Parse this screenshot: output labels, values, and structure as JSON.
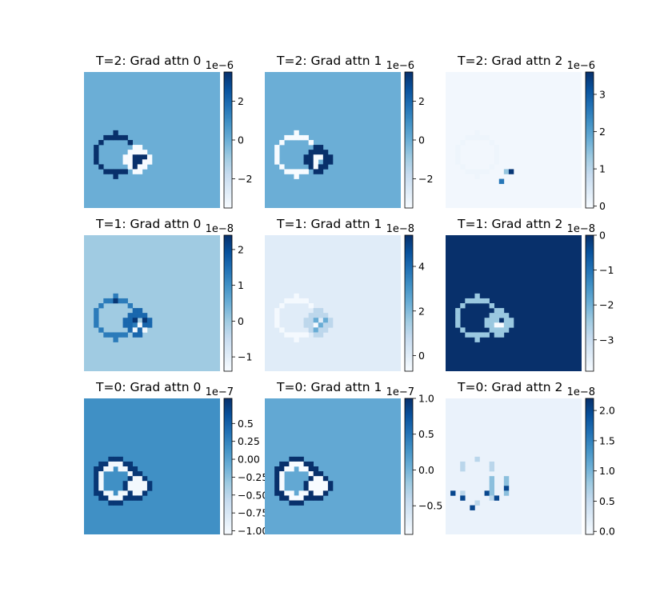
{
  "figure": {
    "background": "#ffffff"
  },
  "colormap": {
    "name": "Blues",
    "low": "#f7fbff",
    "high": "#08306b"
  },
  "chart_data": [
    {
      "type": "heatmap",
      "title": "T=2: Grad attn 0",
      "exponent_label": "1e−6",
      "vmin": -3.5,
      "vmax": 3.5,
      "background_value": 0.0,
      "ticks": [
        {
          "v": 2,
          "t": "2"
        },
        {
          "v": 0,
          "t": "0"
        },
        {
          "v": -2,
          "t": "−2"
        }
      ],
      "shapes": [
        {
          "kind": "ring",
          "cx": 6.5,
          "cy": 17.0,
          "r": 4.0,
          "value": 3.5
        },
        {
          "kind": "ring",
          "cx": 11.0,
          "cy": 18.0,
          "r": 2.0,
          "value": -3.5
        },
        {
          "kind": "pixels",
          "value": 3.5,
          "cells": [
            [
              10,
              17
            ],
            [
              10,
              18
            ],
            [
              10,
              19
            ],
            [
              11,
              17
            ],
            [
              11,
              18
            ],
            [
              12,
              17
            ]
          ]
        }
      ]
    },
    {
      "type": "heatmap",
      "title": "T=2: Grad attn 1",
      "exponent_label": "1e−6",
      "vmin": -3.5,
      "vmax": 3.5,
      "background_value": 0.0,
      "ticks": [
        {
          "v": 2,
          "t": "2"
        },
        {
          "v": 0,
          "t": "0"
        },
        {
          "v": -2,
          "t": "−2"
        }
      ],
      "shapes": [
        {
          "kind": "ring",
          "cx": 6.5,
          "cy": 17.0,
          "r": 4.0,
          "value": -3.5
        },
        {
          "kind": "ring",
          "cx": 11.0,
          "cy": 18.0,
          "r": 2.0,
          "value": 3.5
        },
        {
          "kind": "pixels",
          "value": -3.5,
          "cells": [
            [
              10,
              17
            ],
            [
              10,
              18
            ],
            [
              10,
              19
            ],
            [
              11,
              17
            ]
          ]
        }
      ]
    },
    {
      "type": "heatmap",
      "title": "T=2: Grad attn 2",
      "exponent_label": "1e−6",
      "vmin": -0.05,
      "vmax": 3.6,
      "background_value": 0.05,
      "ticks": [
        {
          "v": 3,
          "t": "3"
        },
        {
          "v": 2,
          "t": "2"
        },
        {
          "v": 1,
          "t": "1"
        },
        {
          "v": 0,
          "t": "0"
        }
      ],
      "shapes": [
        {
          "kind": "ring",
          "cx": 6.5,
          "cy": 17.0,
          "r": 4.0,
          "value": 0.12
        },
        {
          "kind": "pixels",
          "value": 1.4,
          "cells": [
            [
              12,
              20
            ]
          ]
        },
        {
          "kind": "pixels",
          "value": 3.5,
          "cells": [
            [
              13,
              20
            ]
          ]
        },
        {
          "kind": "pixels",
          "value": 2.6,
          "cells": [
            [
              11,
              22
            ]
          ]
        }
      ]
    },
    {
      "type": "heatmap",
      "title": "T=1: Grad attn 0",
      "exponent_label": "1e−8",
      "vmin": -1.4,
      "vmax": 2.4,
      "background_value": 0.0,
      "ticks": [
        {
          "v": 2,
          "t": "2"
        },
        {
          "v": 1,
          "t": "1"
        },
        {
          "v": 0,
          "t": "0"
        },
        {
          "v": -1,
          "t": "−1"
        }
      ],
      "shapes": [
        {
          "kind": "ring",
          "cx": 6.5,
          "cy": 17.0,
          "r": 4.0,
          "value": 1.3
        },
        {
          "kind": "ring",
          "cx": 11.0,
          "cy": 18.0,
          "r": 2.0,
          "value": 1.6
        },
        {
          "kind": "pixels",
          "value": -1.3,
          "cells": [
            [
              11,
              18
            ],
            [
              12,
              19
            ],
            [
              10,
              19
            ]
          ]
        },
        {
          "kind": "pixels",
          "value": 2.3,
          "cells": [
            [
              10,
              17
            ],
            [
              6,
              13
            ],
            [
              12,
              17
            ]
          ]
        }
      ]
    },
    {
      "type": "heatmap",
      "title": "T=1: Grad attn 1",
      "exponent_label": "1e−8",
      "vmin": -0.7,
      "vmax": 5.4,
      "background_value": 0.0,
      "ticks": [
        {
          "v": 4,
          "t": "4"
        },
        {
          "v": 2,
          "t": "2"
        },
        {
          "v": 0,
          "t": "0"
        }
      ],
      "shapes": [
        {
          "kind": "ring",
          "cx": 6.5,
          "cy": 17.0,
          "r": 4.0,
          "value": -0.6
        },
        {
          "kind": "ring",
          "cx": 11.0,
          "cy": 18.0,
          "r": 2.0,
          "value": 1.0
        },
        {
          "kind": "pixels",
          "value": 2.4,
          "cells": [
            [
              10,
              17
            ],
            [
              11,
              18
            ],
            [
              12,
              17
            ],
            [
              10,
              19
            ]
          ]
        }
      ]
    },
    {
      "type": "heatmap",
      "title": "T=1: Grad attn 2",
      "exponent_label": "1e−8",
      "vmin": -3.9,
      "vmax": 0.0,
      "background_value": 0.0,
      "ticks": [
        {
          "v": 0,
          "t": "0"
        },
        {
          "v": -1,
          "t": "−1"
        },
        {
          "v": -2,
          "t": "−2"
        },
        {
          "v": -3,
          "t": "−3"
        }
      ],
      "shapes": [
        {
          "kind": "ring",
          "cx": 6.5,
          "cy": 17.0,
          "r": 4.0,
          "value": -2.4
        },
        {
          "kind": "ring",
          "cx": 11.0,
          "cy": 18.0,
          "r": 2.0,
          "value": -2.4
        },
        {
          "kind": "pixels",
          "value": -3.9,
          "cells": [
            [
              11,
              18
            ],
            [
              10,
              18
            ]
          ]
        }
      ]
    },
    {
      "type": "heatmap",
      "title": "T=0: Grad attn 0",
      "exponent_label": "1e−7",
      "vmin": -1.05,
      "vmax": 0.85,
      "background_value": 0.15,
      "ticks": [
        {
          "v": 0.5,
          "t": "0.5"
        },
        {
          "v": 0.25,
          "t": "0.25"
        },
        {
          "v": 0.0,
          "t": "0.00"
        },
        {
          "v": -0.25,
          "t": "−0.25"
        },
        {
          "v": -0.5,
          "t": "−0.50"
        },
        {
          "v": -0.75,
          "t": "−0.75"
        },
        {
          "v": -1.0,
          "t": "−1.00"
        }
      ],
      "shapes": [
        {
          "kind": "ring",
          "cx": 6.5,
          "cy": 17.0,
          "r": 4.2,
          "value": 0.8
        },
        {
          "kind": "ring",
          "cx": 6.5,
          "cy": 17.0,
          "r": 3.2,
          "value": -1.0
        },
        {
          "kind": "ring",
          "cx": 11.0,
          "cy": 18.0,
          "r": 2.0,
          "value": 0.8
        },
        {
          "kind": "ring",
          "cx": 11.0,
          "cy": 18.0,
          "r": 1.2,
          "value": -1.0
        }
      ]
    },
    {
      "type": "heatmap",
      "title": "T=0: Grad attn 1",
      "exponent_label": "1e−7",
      "vmin": -0.9,
      "vmax": 1.0,
      "background_value": 0.1,
      "ticks": [
        {
          "v": 1.0,
          "t": "1.0"
        },
        {
          "v": 0.5,
          "t": "0.5"
        },
        {
          "v": 0.0,
          "t": "0.0"
        },
        {
          "v": -0.5,
          "t": "−0.5"
        }
      ],
      "shapes": [
        {
          "kind": "ring",
          "cx": 6.5,
          "cy": 17.0,
          "r": 4.2,
          "value": 1.0
        },
        {
          "kind": "ring",
          "cx": 6.5,
          "cy": 17.0,
          "r": 3.2,
          "value": -0.9
        },
        {
          "kind": "ring",
          "cx": 11.0,
          "cy": 18.0,
          "r": 2.0,
          "value": 1.0
        },
        {
          "kind": "ring",
          "cx": 11.0,
          "cy": 18.0,
          "r": 1.2,
          "value": -0.9
        }
      ]
    },
    {
      "type": "heatmap",
      "title": "T=0: Grad attn 2",
      "exponent_label": "1e−8",
      "vmin": -0.05,
      "vmax": 2.2,
      "background_value": 0.1,
      "ticks": [
        {
          "v": 2.0,
          "t": "2.0"
        },
        {
          "v": 1.5,
          "t": "1.5"
        },
        {
          "v": 1.0,
          "t": "1.0"
        },
        {
          "v": 0.5,
          "t": "0.5"
        },
        {
          "v": 0.0,
          "t": "0.0"
        }
      ],
      "shapes": [
        {
          "kind": "ring",
          "cx": 6.5,
          "cy": 17.0,
          "r": 4.2,
          "value": 0.6,
          "sparse": true
        },
        {
          "kind": "ring",
          "cx": 11.0,
          "cy": 18.0,
          "r": 2.0,
          "value": 0.9,
          "sparse": true
        },
        {
          "kind": "pixels",
          "value": 2.0,
          "cells": [
            [
              1,
              19
            ],
            [
              3,
              20
            ],
            [
              8,
              19
            ],
            [
              12,
              18
            ],
            [
              10,
              20
            ],
            [
              5,
              22
            ]
          ]
        }
      ]
    }
  ]
}
